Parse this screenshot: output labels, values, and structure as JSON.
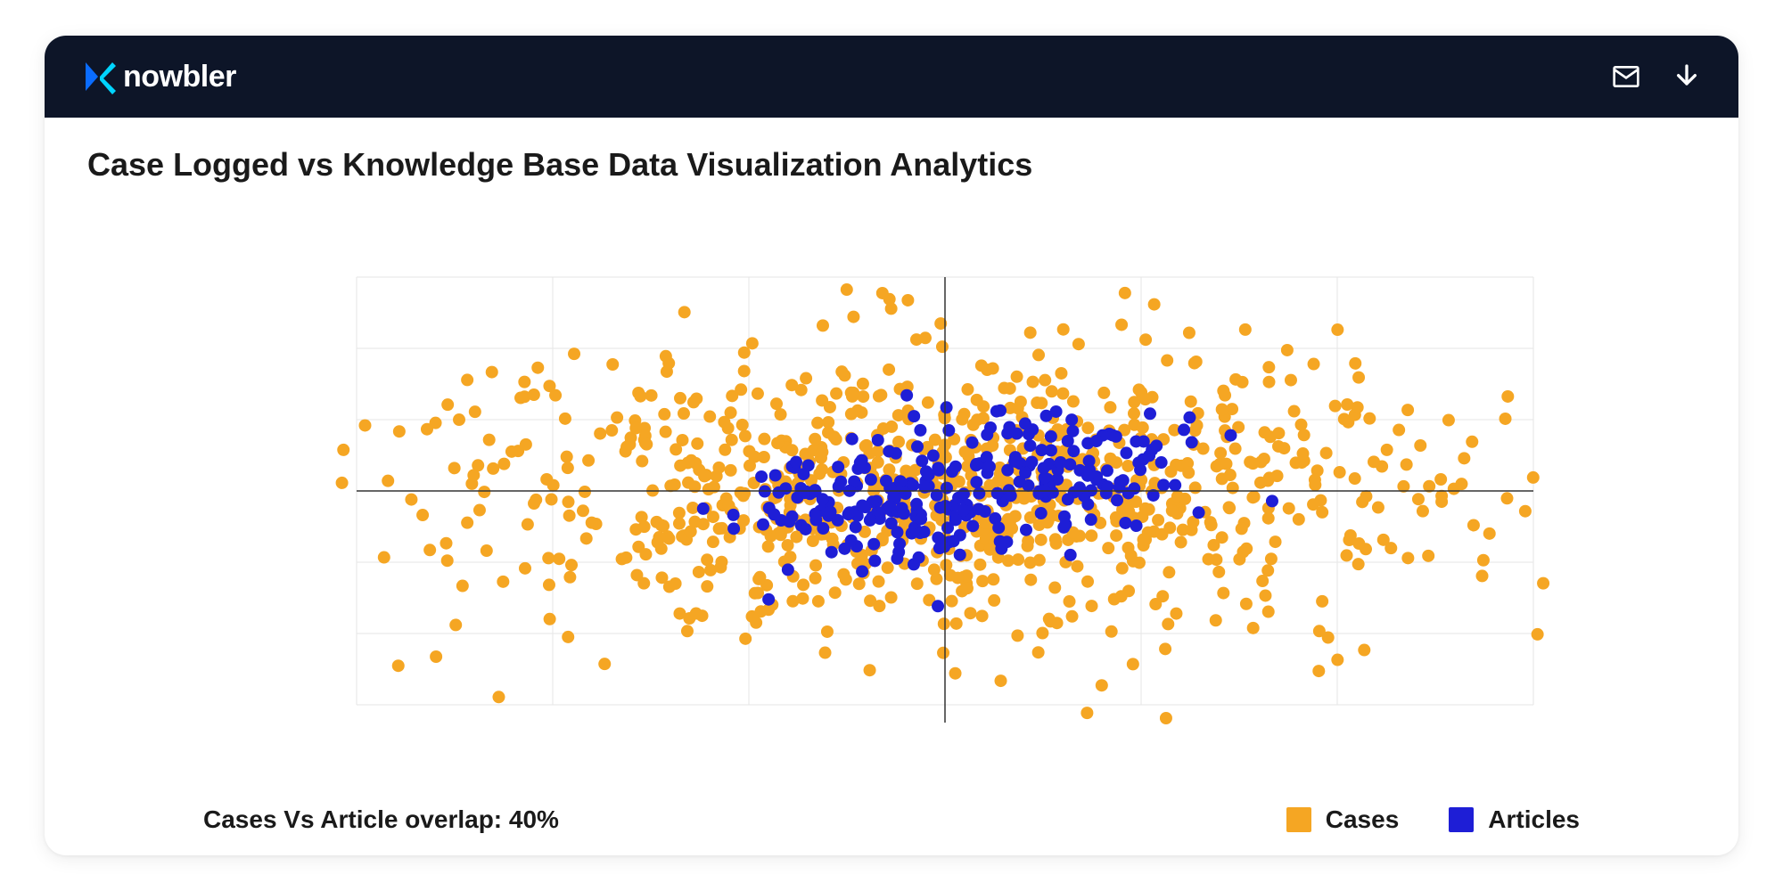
{
  "brand": {
    "name": "nowbler",
    "logo_colors": {
      "primary": "#0a6cff",
      "secondary": "#00d4ff"
    }
  },
  "header": {
    "background": "#0d1528",
    "text_color": "#ffffff"
  },
  "chart": {
    "type": "scatter",
    "title": "Case Logged vs Knowledge Base Data Visualization Analytics",
    "title_fontsize": 36,
    "title_color": "#1a1a1a",
    "background_color": "#ffffff",
    "grid_color": "#e6e6e6",
    "axis_color": "#333333",
    "xlim": [
      -6,
      6
    ],
    "ylim": [
      -3,
      3
    ],
    "x_gridlines": [
      -6,
      -4,
      -2,
      0,
      2,
      4,
      6
    ],
    "y_gridlines": [
      -3,
      -2,
      -1,
      0,
      1,
      2,
      3
    ],
    "marker_radius": 7,
    "series": [
      {
        "name": "Cases",
        "color": "#f5a623",
        "count": 900,
        "spread": {
          "x_std": 2.6,
          "y_std": 1.05,
          "x_mean": 0,
          "y_mean": 0
        }
      },
      {
        "name": "Articles",
        "color": "#1e1ed6",
        "count": 280,
        "clusters": [
          {
            "x_mean": -0.8,
            "y_mean": -0.25,
            "x_std": 0.75,
            "y_std": 0.45,
            "weight": 0.5
          },
          {
            "x_mean": 0.9,
            "y_mean": 0.25,
            "x_std": 0.85,
            "y_std": 0.45,
            "weight": 0.5
          }
        ]
      }
    ]
  },
  "footer": {
    "overlap_label": "Cases Vs Article overlap: 40%",
    "overlap_fontsize": 28,
    "legend": [
      {
        "label": "Cases",
        "color": "#f5a623"
      },
      {
        "label": "Articles",
        "color": "#1e1ed6"
      }
    ],
    "legend_fontsize": 28
  }
}
